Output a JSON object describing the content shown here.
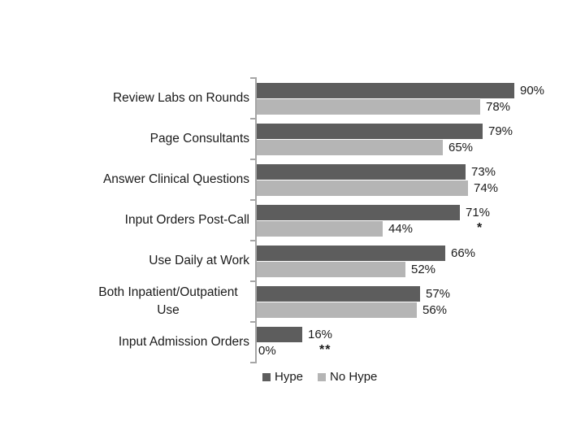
{
  "chart_data": {
    "type": "bar",
    "orientation": "horizontal",
    "title": "",
    "xlabel": "",
    "ylabel": "",
    "xlim": [
      0,
      100
    ],
    "grid": false,
    "legend_position": "bottom",
    "value_suffix": "%",
    "categories": [
      "Review Labs on Rounds",
      "Page Consultants",
      "Answer Clinical Questions",
      "Input Orders Post-Call",
      "Use Daily at Work",
      "Both Inpatient/Outpatient Use",
      "Input Admission Orders"
    ],
    "series": [
      {
        "name": "Hype",
        "color": "#5d5d5d",
        "values": [
          90,
          79,
          73,
          71,
          66,
          57,
          16
        ]
      },
      {
        "name": "No Hype",
        "color": "#b5b5b5",
        "values": [
          78,
          65,
          74,
          44,
          52,
          56,
          0
        ]
      }
    ],
    "annotations": [
      {
        "category_index": 3,
        "text": "*"
      },
      {
        "category_index": 6,
        "text": "**"
      }
    ],
    "axis_color": "#a6a6a6",
    "text_color": "#1a1a1a"
  }
}
